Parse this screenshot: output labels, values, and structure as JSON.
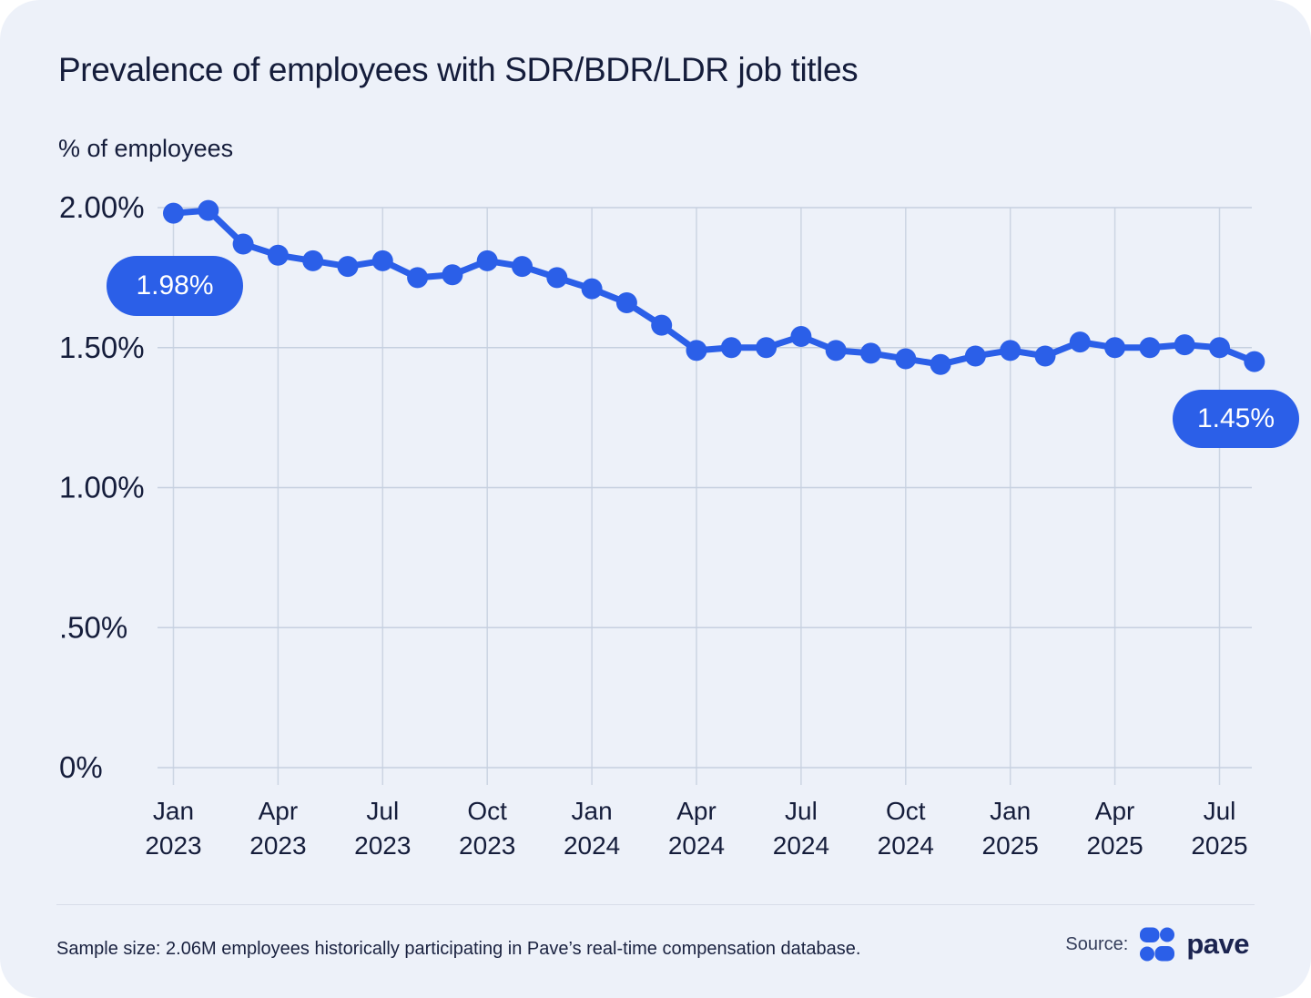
{
  "page": {
    "title": "Prevalence of employees with SDR/BDR/LDR job titles",
    "y_axis_title": "% of employees"
  },
  "chart_data": {
    "type": "line",
    "title": "Prevalence of employees with SDR/BDR/LDR job titles",
    "ylabel": "% of employees",
    "ylim": [
      0,
      2.0
    ],
    "grid": true,
    "legend": "none",
    "line_color": "#2b5fe8",
    "grid_color_h": "#c6d0e0",
    "grid_color_v": "#ccd5e3",
    "x": [
      "Jan 2023",
      "Feb 2023",
      "Mar 2023",
      "Apr 2023",
      "May 2023",
      "Jun 2023",
      "Jul 2023",
      "Aug 2023",
      "Sep 2023",
      "Oct 2023",
      "Nov 2023",
      "Dec 2023",
      "Jan 2024",
      "Feb 2024",
      "Mar 2024",
      "Apr 2024",
      "May 2024",
      "Jun 2024",
      "Jul 2024",
      "Aug 2024",
      "Sep 2024",
      "Oct 2024",
      "Nov 2024",
      "Dec 2024",
      "Jan 2025",
      "Feb 2025",
      "Mar 2025",
      "Apr 2025",
      "May 2025",
      "Jun 2025",
      "Jul 2025",
      "Aug 2025"
    ],
    "values": [
      1.98,
      1.99,
      1.87,
      1.83,
      1.81,
      1.79,
      1.81,
      1.75,
      1.76,
      1.81,
      1.79,
      1.75,
      1.71,
      1.66,
      1.58,
      1.49,
      1.5,
      1.5,
      1.54,
      1.49,
      1.48,
      1.46,
      1.44,
      1.47,
      1.49,
      1.47,
      1.52,
      1.5,
      1.5,
      1.51,
      1.5,
      1.45
    ],
    "y_ticks": [
      {
        "value": 0,
        "label": "0%"
      },
      {
        "value": 0.5,
        "label": ".50%"
      },
      {
        "value": 1.0,
        "label": "1.00%"
      },
      {
        "value": 1.5,
        "label": "1.50%"
      },
      {
        "value": 2.0,
        "label": "2.00%"
      }
    ],
    "x_ticks": [
      {
        "index": 0,
        "month": "Jan",
        "year": "2023"
      },
      {
        "index": 3,
        "month": "Apr",
        "year": "2023"
      },
      {
        "index": 6,
        "month": "Jul",
        "year": "2023"
      },
      {
        "index": 9,
        "month": "Oct",
        "year": "2023"
      },
      {
        "index": 12,
        "month": "Jan",
        "year": "2024"
      },
      {
        "index": 15,
        "month": "Apr",
        "year": "2024"
      },
      {
        "index": 18,
        "month": "Jul",
        "year": "2024"
      },
      {
        "index": 21,
        "month": "Oct",
        "year": "2024"
      },
      {
        "index": 24,
        "month": "Jan",
        "year": "2025"
      },
      {
        "index": 27,
        "month": "Apr",
        "year": "2025"
      },
      {
        "index": 30,
        "month": "Jul",
        "year": "2025"
      }
    ],
    "annotations": [
      {
        "label": "1.98%",
        "point": "Jan 2023",
        "position": "start"
      },
      {
        "label": "1.45%",
        "point": "Aug 2025",
        "position": "end"
      }
    ]
  },
  "footer": {
    "sample_note": "Sample size: 2.06M employees historically participating in Pave’s real-time compensation database.",
    "source_label": "Source:",
    "brand_name": "pave",
    "brand_color": "#2b5fe8"
  }
}
